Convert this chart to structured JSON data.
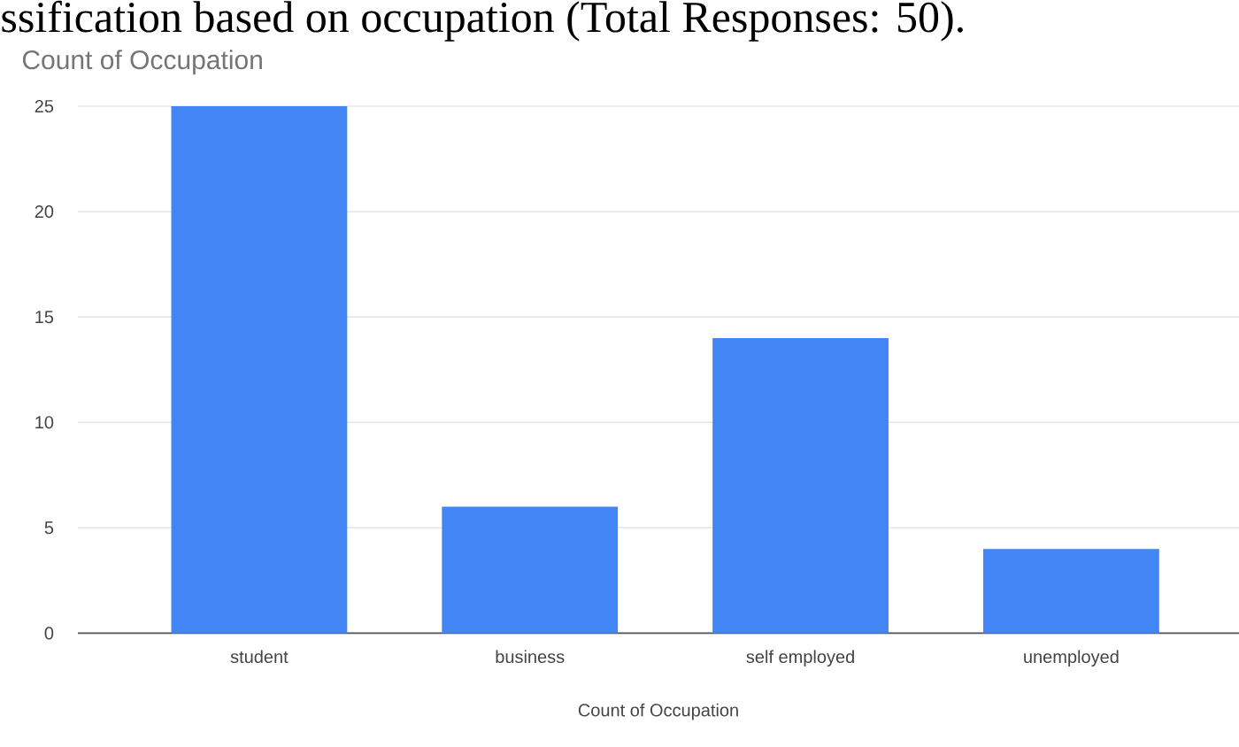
{
  "chart_data": {
    "type": "bar",
    "title": "Count of Occupation",
    "xlabel": "Count of Occupation",
    "annotations": [
      "ssification based on occupation (Total Responses: 50)."
    ],
    "categories": [
      "student",
      "business",
      "self employed",
      "unemployed"
    ],
    "values": [
      25,
      6,
      14,
      4
    ],
    "color": "#4285f4",
    "ylim": [
      0,
      25
    ],
    "yticks": [
      0,
      5,
      10,
      15,
      20,
      25
    ],
    "grid": "y"
  }
}
